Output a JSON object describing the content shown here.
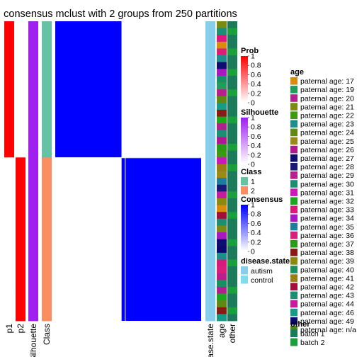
{
  "chart_data": {
    "type": "heatmap",
    "title": "consensus mclust with 2 groups from 250 partitions",
    "n_samples": 44,
    "class_split": 20,
    "columns": {
      "p1": "p1",
      "p2": "p2",
      "silhouette": "Silhouette",
      "class": "Class",
      "disease_state": "disease.state",
      "age": "age",
      "other": "other"
    },
    "sample_annotations": {
      "p1": [
        1,
        1,
        1,
        1,
        1,
        1,
        1,
        1,
        1,
        1,
        1,
        1,
        1,
        1,
        1,
        1,
        1,
        1,
        1,
        1,
        0,
        0,
        0,
        0,
        0,
        0,
        0,
        0,
        0,
        0,
        0,
        0,
        0,
        0,
        0,
        0,
        0,
        0,
        0,
        0,
        0,
        0,
        0,
        0
      ],
      "p2": [
        0,
        0,
        0,
        0,
        0,
        0,
        0,
        0,
        0,
        0,
        0,
        0,
        0,
        0,
        0,
        0,
        0,
        0,
        0,
        0,
        1,
        1,
        1,
        1,
        1,
        1,
        1,
        1,
        1,
        1,
        1,
        1,
        1,
        1,
        1,
        1,
        1,
        1,
        1,
        1,
        1,
        1,
        1,
        1
      ],
      "silhouette": [
        1,
        1,
        1,
        1,
        1,
        1,
        1,
        1,
        1,
        1,
        1,
        1,
        1,
        1,
        1,
        1,
        1,
        1,
        1,
        1,
        1,
        1,
        1,
        1,
        1,
        1,
        1,
        1,
        1,
        1,
        1,
        1,
        1,
        1,
        1,
        1,
        1,
        1,
        1,
        1,
        1,
        1,
        1,
        1
      ],
      "class": [
        1,
        1,
        1,
        1,
        1,
        1,
        1,
        1,
        1,
        1,
        1,
        1,
        1,
        1,
        1,
        1,
        1,
        1,
        1,
        1,
        2,
        2,
        2,
        2,
        2,
        2,
        2,
        2,
        2,
        2,
        2,
        2,
        2,
        2,
        2,
        2,
        2,
        2,
        2,
        2,
        2,
        2,
        2,
        2
      ],
      "disease_state": [
        0,
        0,
        0,
        0,
        0,
        0,
        0,
        0,
        0,
        0,
        0,
        0,
        0,
        0,
        0,
        0,
        0,
        0,
        0,
        0,
        0,
        0,
        0,
        0,
        0,
        0,
        0,
        0,
        0,
        0,
        0,
        0,
        0,
        0,
        0,
        0,
        0,
        0,
        0,
        0,
        0,
        0,
        0,
        0
      ],
      "age": [
        3,
        12,
        15,
        0,
        18,
        5,
        9,
        16,
        22,
        1,
        11,
        6,
        27,
        20,
        14,
        2,
        25,
        8,
        19,
        4,
        13,
        23,
        7,
        17,
        10,
        26,
        21,
        0,
        24,
        12,
        3,
        16,
        9,
        28,
        5,
        15,
        18,
        11,
        22,
        2,
        14,
        6,
        20,
        27
      ],
      "other": [
        0,
        1,
        0,
        0,
        1,
        0,
        0,
        1,
        0,
        0,
        1,
        0,
        0,
        0,
        1,
        0,
        0,
        0,
        1,
        0,
        0,
        1,
        0,
        0,
        0,
        1,
        0,
        0,
        1,
        0,
        0,
        0,
        1,
        0,
        0,
        1,
        0,
        0,
        0,
        1,
        0,
        0,
        1,
        0
      ]
    },
    "consensus_matrix": {
      "class1_range": [
        0,
        19
      ],
      "class2_range": [
        20,
        43
      ],
      "within_value": 1,
      "between_value": 0
    },
    "legends": {
      "prob": {
        "title": "Prob",
        "ticks": [
          "1",
          "0.8",
          "0.6",
          "0.4",
          "0.2",
          "0"
        ],
        "color_high": "#FF0000",
        "color_low": "#FFFFFF"
      },
      "silhouette": {
        "title": "Silhouette",
        "ticks": [
          "1",
          "0.8",
          "0.6",
          "0.4",
          "0.2",
          "0"
        ],
        "color_high": "#A020F0",
        "color_low": "#FFFFFF"
      },
      "class": {
        "title": "Class",
        "items": [
          {
            "label": "1",
            "color": "#66C2A5"
          },
          {
            "label": "2",
            "color": "#FC8D62"
          }
        ]
      },
      "consensus": {
        "title": "Consensus",
        "ticks": [
          "1",
          "0.8",
          "0.6",
          "0.4",
          "0.2",
          "0"
        ],
        "color_high": "#0000FF",
        "color_low": "#FFFFFF"
      },
      "disease_state": {
        "title": "disease.state",
        "items": [
          {
            "label": "autism",
            "color": "#87CEEB"
          },
          {
            "label": "control",
            "color": "#7FDBEF"
          }
        ]
      },
      "age": {
        "title": "age",
        "items": [
          {
            "label": "paternal age: 17",
            "color": "#D98B0F"
          },
          {
            "label": "paternal age: 19",
            "color": "#1E9E5A"
          },
          {
            "label": "paternal age: 20",
            "color": "#B0208F"
          },
          {
            "label": "paternal age: 21",
            "color": "#7A8A12"
          },
          {
            "label": "paternal age: 22",
            "color": "#3C9A10"
          },
          {
            "label": "paternal age: 23",
            "color": "#1C8F8A"
          },
          {
            "label": "paternal age: 24",
            "color": "#5E8A14"
          },
          {
            "label": "paternal age: 25",
            "color": "#9A8A1A"
          },
          {
            "label": "paternal age: 26",
            "color": "#B2188E"
          },
          {
            "label": "paternal age: 27",
            "color": "#0E0E70"
          },
          {
            "label": "paternal age: 28",
            "color": "#181A78"
          },
          {
            "label": "paternal age: 29",
            "color": "#B81E8C"
          },
          {
            "label": "paternal age: 30",
            "color": "#1C8F72"
          },
          {
            "label": "paternal age: 31",
            "color": "#CC18B8"
          },
          {
            "label": "paternal age: 32",
            "color": "#1AA81E"
          },
          {
            "label": "paternal age: 33",
            "color": "#D81A7C"
          },
          {
            "label": "paternal age: 34",
            "color": "#A818C0"
          },
          {
            "label": "paternal age: 35",
            "color": "#1C7E9C"
          },
          {
            "label": "paternal age: 36",
            "color": "#D8207A"
          },
          {
            "label": "paternal age: 37",
            "color": "#2A9A1A"
          },
          {
            "label": "paternal age: 38",
            "color": "#8A1A14"
          },
          {
            "label": "paternal age: 39",
            "color": "#8A8A10"
          },
          {
            "label": "paternal age: 40",
            "color": "#1A9060"
          },
          {
            "label": "paternal age: 41",
            "color": "#9A7E14"
          },
          {
            "label": "paternal age: 42",
            "color": "#A0103A"
          },
          {
            "label": "paternal age: 43",
            "color": "#1C8F72"
          },
          {
            "label": "paternal age: 44",
            "color": "#C41C9A"
          },
          {
            "label": "paternal age: 46",
            "color": "#189A86"
          },
          {
            "label": "paternal age: 49",
            "color": "#0A0A6E"
          },
          {
            "label": "paternal age: n/a",
            "color": "#4C8A14"
          }
        ]
      },
      "other": {
        "title": "other",
        "items": [
          {
            "label": "batch 1",
            "color": "#1B7A5A"
          },
          {
            "label": "batch 2",
            "color": "#19A03A"
          }
        ]
      }
    }
  }
}
